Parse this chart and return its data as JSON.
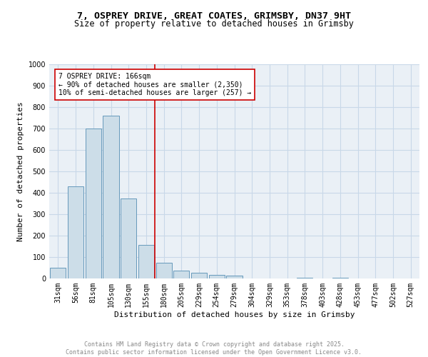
{
  "title_line1": "7, OSPREY DRIVE, GREAT COATES, GRIMSBY, DN37 9HT",
  "title_line2": "Size of property relative to detached houses in Grimsby",
  "xlabel": "Distribution of detached houses by size in Grimsby",
  "ylabel": "Number of detached properties",
  "bar_labels": [
    "31sqm",
    "56sqm",
    "81sqm",
    "105sqm",
    "130sqm",
    "155sqm",
    "180sqm",
    "205sqm",
    "229sqm",
    "254sqm",
    "279sqm",
    "304sqm",
    "329sqm",
    "353sqm",
    "378sqm",
    "403sqm",
    "428sqm",
    "453sqm",
    "477sqm",
    "502sqm",
    "527sqm"
  ],
  "bar_values": [
    50,
    430,
    700,
    760,
    375,
    157,
    75,
    37,
    28,
    17,
    13,
    0,
    0,
    0,
    5,
    0,
    5,
    0,
    0,
    0,
    0
  ],
  "bar_color": "#ccdde8",
  "bar_edge_color": "#6699bb",
  "vline_x": 5.5,
  "vline_color": "#cc0000",
  "annotation_text": "7 OSPREY DRIVE: 166sqm\n← 90% of detached houses are smaller (2,350)\n10% of semi-detached houses are larger (257) →",
  "annotation_box_color": "#ffffff",
  "annotation_box_edge_color": "#cc0000",
  "ylim": [
    0,
    1000
  ],
  "yticks": [
    0,
    100,
    200,
    300,
    400,
    500,
    600,
    700,
    800,
    900,
    1000
  ],
  "grid_color": "#c8d8e8",
  "background_color": "#eaf0f6",
  "footer_text": "Contains HM Land Registry data © Crown copyright and database right 2025.\nContains public sector information licensed under the Open Government Licence v3.0.",
  "title_fontsize": 9.5,
  "subtitle_fontsize": 8.5,
  "axis_label_fontsize": 8,
  "tick_fontsize": 7,
  "annotation_fontsize": 7,
  "footer_fontsize": 6
}
